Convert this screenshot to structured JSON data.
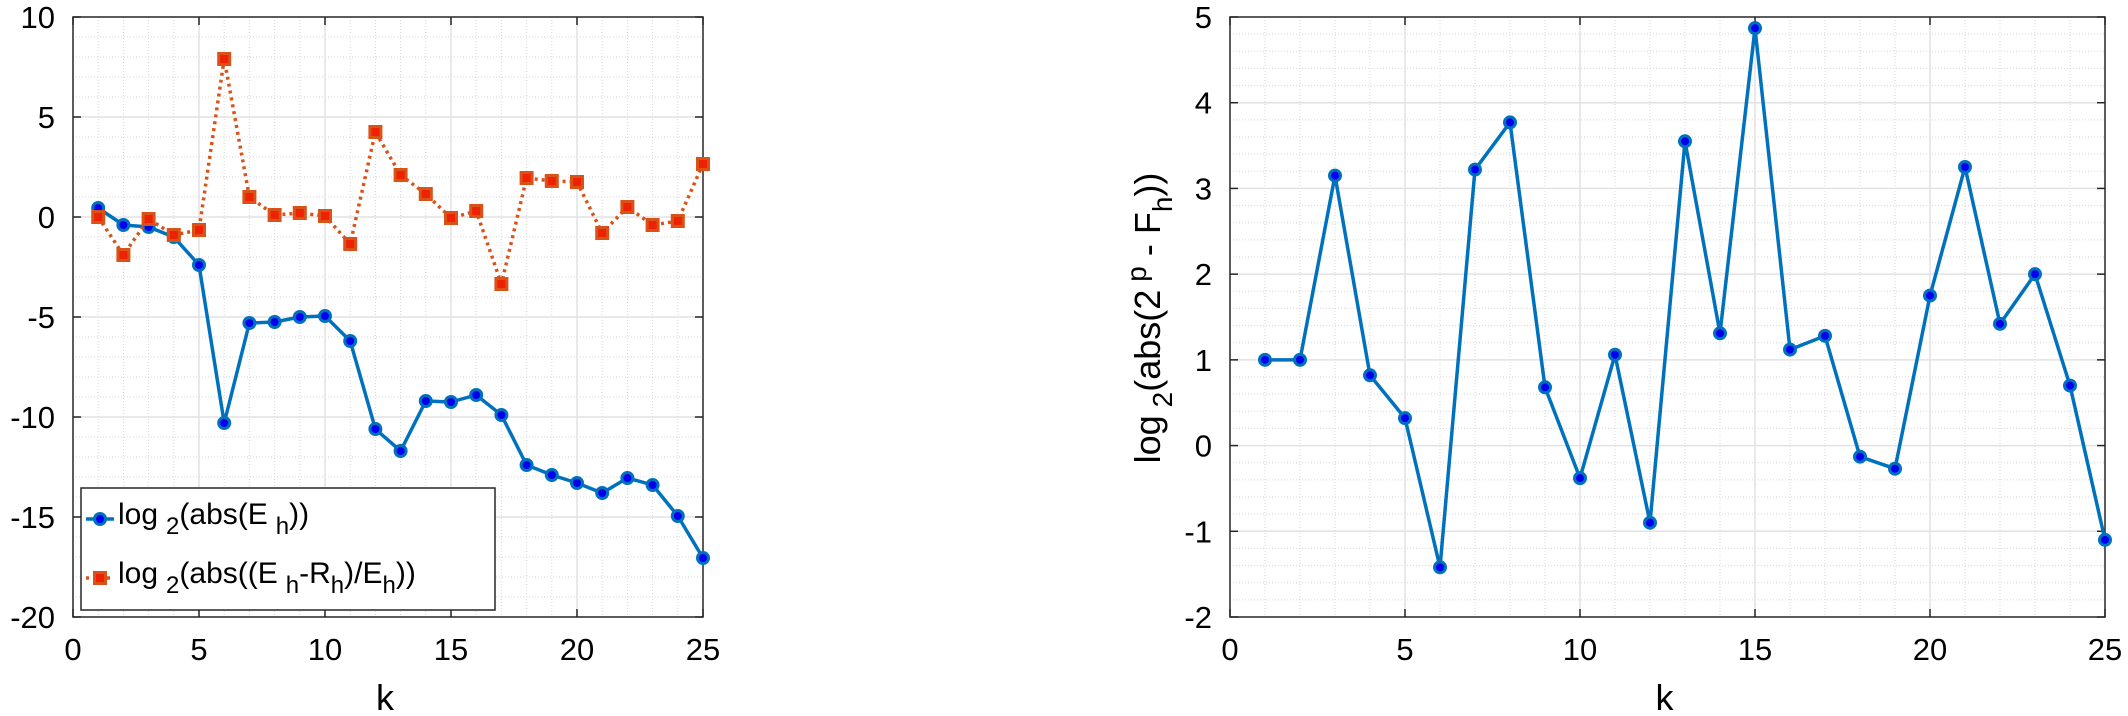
{
  "chart_data": [
    {
      "type": "line",
      "title": "",
      "xlabel": "k",
      "ylabel": "",
      "xlim": [
        0,
        25
      ],
      "ylim": [
        -20,
        10
      ],
      "xticks": [
        0,
        5,
        10,
        15,
        20,
        25
      ],
      "yticks": [
        -20,
        -15,
        -10,
        -5,
        0,
        5,
        10
      ],
      "xtick_labels": [
        "0",
        "5",
        "10",
        "15",
        "20",
        "25"
      ],
      "ytick_labels": [
        "-20",
        "-15",
        "-10",
        "-5",
        "0",
        "5",
        "10"
      ],
      "grid": true,
      "minor_grid": true,
      "legend_position": "bottom-left",
      "x": [
        1,
        2,
        3,
        4,
        5,
        6,
        7,
        8,
        9,
        10,
        11,
        12,
        13,
        14,
        15,
        16,
        17,
        18,
        19,
        20,
        21,
        22,
        23,
        24,
        25
      ],
      "series": [
        {
          "name": "log2(abs(E_h))",
          "legend_parts": {
            "pre": "log",
            "sub1": "2",
            "mid": "(abs(E",
            "sub2": "h",
            "post": "))"
          },
          "color": "#0072BD",
          "marker": "circle",
          "line_style": "solid",
          "values": [
            0.45,
            -0.4,
            -0.5,
            -1.0,
            -2.4,
            -10.3,
            -5.3,
            -5.25,
            -5.0,
            -4.95,
            -6.2,
            -10.6,
            -11.7,
            -9.2,
            -9.25,
            -8.9,
            -9.9,
            -12.4,
            -12.9,
            -13.3,
            -13.8,
            -13.05,
            -13.4,
            -14.95,
            -17.05
          ]
        },
        {
          "name": "log2(abs((E_h-R_h)/E_h))",
          "legend_parts": {
            "pre": "log",
            "sub1": "2",
            "mid": "(abs((E",
            "sub2": "h",
            "mid2": "-R",
            "sub3": "h",
            "mid3": ")/E",
            "sub4": "h",
            "post": "))"
          },
          "color": "#D95319",
          "marker": "square",
          "line_style": "dotted",
          "values": [
            0.0,
            -1.9,
            -0.1,
            -0.9,
            -0.65,
            7.9,
            1.0,
            0.1,
            0.2,
            0.05,
            -1.35,
            4.25,
            2.1,
            1.15,
            -0.05,
            0.3,
            -3.35,
            1.95,
            1.8,
            1.75,
            -0.8,
            0.5,
            -0.4,
            -0.2,
            2.65
          ]
        }
      ]
    },
    {
      "type": "line",
      "title": "",
      "xlabel": "k",
      "ylabel": "log2(abs(2^p - F_h))",
      "ylabel_parts": {
        "pre": "log",
        "sub1": "2",
        "mid": "(abs(2",
        "sup": "p",
        "mid2": " - F",
        "sub2": "h",
        "post": "))"
      },
      "xlim": [
        0,
        25
      ],
      "ylim": [
        -2,
        5
      ],
      "xticks": [
        0,
        5,
        10,
        15,
        20,
        25
      ],
      "yticks": [
        -2,
        -1,
        0,
        1,
        2,
        3,
        4,
        5
      ],
      "xtick_labels": [
        "0",
        "5",
        "10",
        "15",
        "20",
        "25"
      ],
      "ytick_labels": [
        "-2",
        "-1",
        "0",
        "1",
        "2",
        "3",
        "4",
        "5"
      ],
      "grid": true,
      "minor_grid": true,
      "x": [
        1,
        2,
        3,
        4,
        5,
        6,
        7,
        8,
        9,
        10,
        11,
        12,
        13,
        14,
        15,
        16,
        17,
        18,
        19,
        20,
        21,
        22,
        23,
        24,
        25
      ],
      "series": [
        {
          "name": "log2(abs(2^p - F_h))",
          "color": "#0072BD",
          "marker": "circle",
          "line_style": "solid",
          "values": [
            1.0,
            1.0,
            3.15,
            0.82,
            0.32,
            -1.42,
            3.22,
            3.77,
            0.68,
            -0.38,
            1.06,
            -0.9,
            3.55,
            1.31,
            4.87,
            1.12,
            1.28,
            -0.13,
            -0.27,
            1.75,
            3.25,
            1.42,
            2.0,
            0.7,
            -1.1
          ]
        }
      ]
    }
  ]
}
